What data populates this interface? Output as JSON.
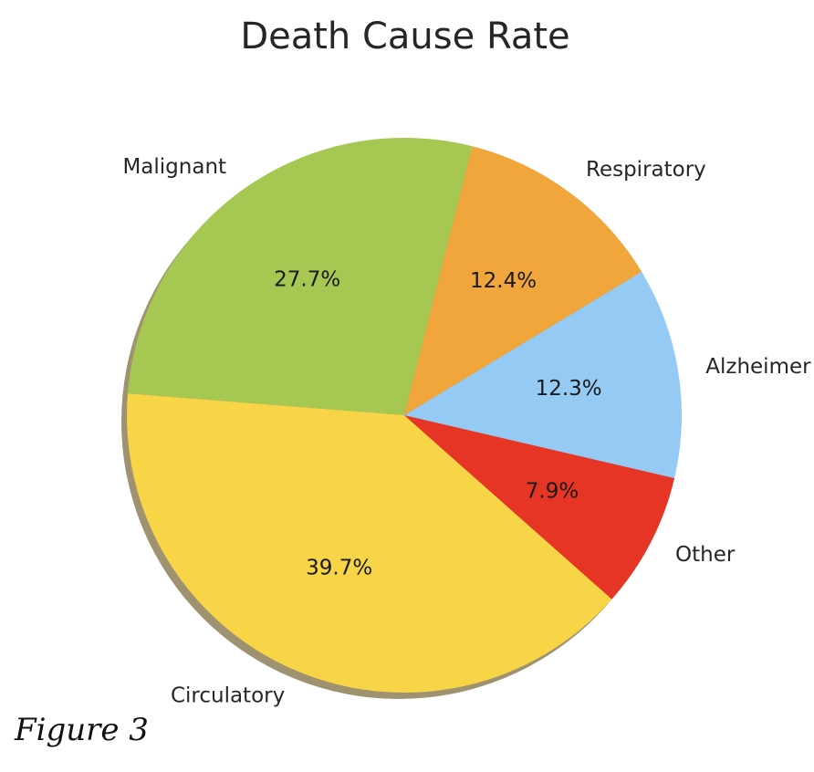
{
  "chart_data": {
    "type": "pie",
    "title": "Death Cause Rate",
    "categories": [
      "Malignant",
      "Circulatory",
      "Other",
      "Alzheimer",
      "Respiratory"
    ],
    "values": [
      27.7,
      39.7,
      7.9,
      12.3,
      12.4
    ],
    "percent_labels": [
      "27.7%",
      "39.7%",
      "7.9%",
      "12.3%",
      "12.4%"
    ],
    "colors": [
      "#a6c852",
      "#f8d447",
      "#e63425",
      "#95caf5",
      "#f0a63b"
    ],
    "shadow": true,
    "legend": "none"
  },
  "caption": "Figure 3"
}
